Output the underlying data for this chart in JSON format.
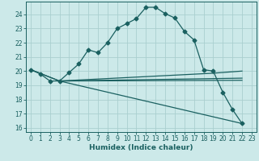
{
  "xlabel": "Humidex (Indice chaleur)",
  "xlim": [
    -0.5,
    23.5
  ],
  "ylim": [
    15.7,
    24.9
  ],
  "yticks": [
    16,
    17,
    18,
    19,
    20,
    21,
    22,
    23,
    24
  ],
  "xticks": [
    0,
    1,
    2,
    3,
    4,
    5,
    6,
    7,
    8,
    9,
    10,
    11,
    12,
    13,
    14,
    15,
    16,
    17,
    18,
    19,
    20,
    21,
    22,
    23
  ],
  "bg_color": "#cce9e9",
  "grid_color": "#aacfcf",
  "line_color": "#1a6060",
  "line1_x": [
    0,
    1,
    2,
    3,
    4,
    5,
    6,
    7,
    8,
    9,
    10,
    11,
    12,
    13,
    14,
    15,
    16,
    17,
    18,
    19,
    20,
    21,
    22
  ],
  "line1_y": [
    20.1,
    19.8,
    19.3,
    19.3,
    19.9,
    20.5,
    21.5,
    21.3,
    22.0,
    23.0,
    23.35,
    23.7,
    24.5,
    24.5,
    24.05,
    23.75,
    22.8,
    22.2,
    20.1,
    20.0,
    18.5,
    17.3,
    16.3
  ],
  "line2_x": [
    0,
    3,
    22
  ],
  "line2_y": [
    20.1,
    19.3,
    19.5
  ],
  "line3_x": [
    0,
    3,
    22
  ],
  "line3_y": [
    20.1,
    19.3,
    19.35
  ],
  "line4_x": [
    3,
    22
  ],
  "line4_y": [
    19.3,
    16.3
  ],
  "line5_x": [
    3,
    19,
    22
  ],
  "line5_y": [
    19.3,
    19.85,
    20.0
  ]
}
